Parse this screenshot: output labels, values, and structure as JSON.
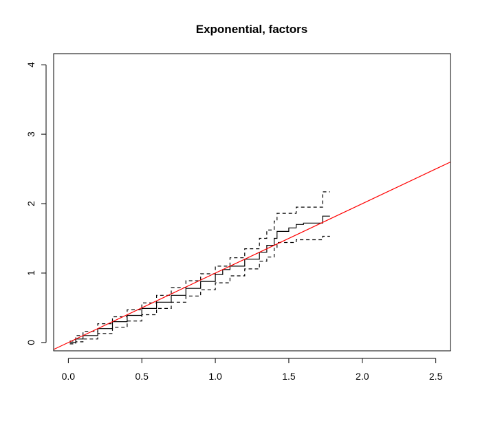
{
  "chart_data": {
    "type": "line",
    "title": "Exponential, factors",
    "xlabel": "",
    "ylabel": "",
    "xlim": [
      -0.1,
      2.6
    ],
    "ylim": [
      -0.12,
      4.16
    ],
    "x_ticks": [
      0.0,
      0.5,
      1.0,
      1.5,
      2.0,
      2.5
    ],
    "x_tick_labels": [
      "0.0",
      "0.5",
      "1.0",
      "1.5",
      "2.0",
      "2.5"
    ],
    "y_ticks": [
      0,
      1,
      2,
      3,
      4
    ],
    "y_tick_labels": [
      "0",
      "1",
      "2",
      "3",
      "4"
    ],
    "grid": false,
    "series": [
      {
        "style": "solid",
        "color": "#000000",
        "step": true,
        "x": [
          0.01,
          0.05,
          0.1,
          0.2,
          0.3,
          0.4,
          0.5,
          0.6,
          0.7,
          0.8,
          0.9,
          1.0,
          1.05,
          1.1,
          1.2,
          1.3,
          1.35,
          1.4,
          1.42,
          1.5,
          1.55,
          1.6,
          1.7,
          1.73,
          1.78
        ],
        "y": [
          0.0,
          0.05,
          0.1,
          0.2,
          0.3,
          0.39,
          0.49,
          0.58,
          0.68,
          0.78,
          0.88,
          0.98,
          1.05,
          1.1,
          1.2,
          1.3,
          1.4,
          1.5,
          1.6,
          1.65,
          1.7,
          1.72,
          1.72,
          1.82,
          1.82
        ]
      },
      {
        "style": "dashed",
        "color": "#000000",
        "step": true,
        "x": [
          0.01,
          0.05,
          0.1,
          0.2,
          0.3,
          0.4,
          0.5,
          0.6,
          0.7,
          0.8,
          0.9,
          1.0,
          1.1,
          1.2,
          1.3,
          1.35,
          1.4,
          1.42,
          1.5,
          1.55,
          1.6,
          1.73,
          1.78
        ],
        "y": [
          0.02,
          0.1,
          0.16,
          0.27,
          0.37,
          0.47,
          0.57,
          0.68,
          0.79,
          0.89,
          0.99,
          1.1,
          1.22,
          1.35,
          1.5,
          1.62,
          1.75,
          1.86,
          1.86,
          1.95,
          1.95,
          2.17,
          2.17
        ]
      },
      {
        "style": "dashed",
        "color": "#000000",
        "step": true,
        "x": [
          0.01,
          0.05,
          0.1,
          0.2,
          0.3,
          0.4,
          0.5,
          0.6,
          0.7,
          0.8,
          0.9,
          1.0,
          1.1,
          1.2,
          1.3,
          1.35,
          1.4,
          1.42,
          1.5,
          1.55,
          1.6,
          1.73,
          1.78
        ],
        "y": [
          -0.02,
          0.01,
          0.05,
          0.13,
          0.22,
          0.31,
          0.4,
          0.49,
          0.58,
          0.67,
          0.76,
          0.86,
          0.96,
          1.06,
          1.17,
          1.23,
          1.36,
          1.44,
          1.44,
          1.48,
          1.48,
          1.53,
          1.53
        ]
      },
      {
        "style": "solid",
        "color": "#ff0000",
        "step": false,
        "x": [
          -0.1,
          2.6
        ],
        "y": [
          -0.1,
          2.6
        ]
      }
    ]
  }
}
